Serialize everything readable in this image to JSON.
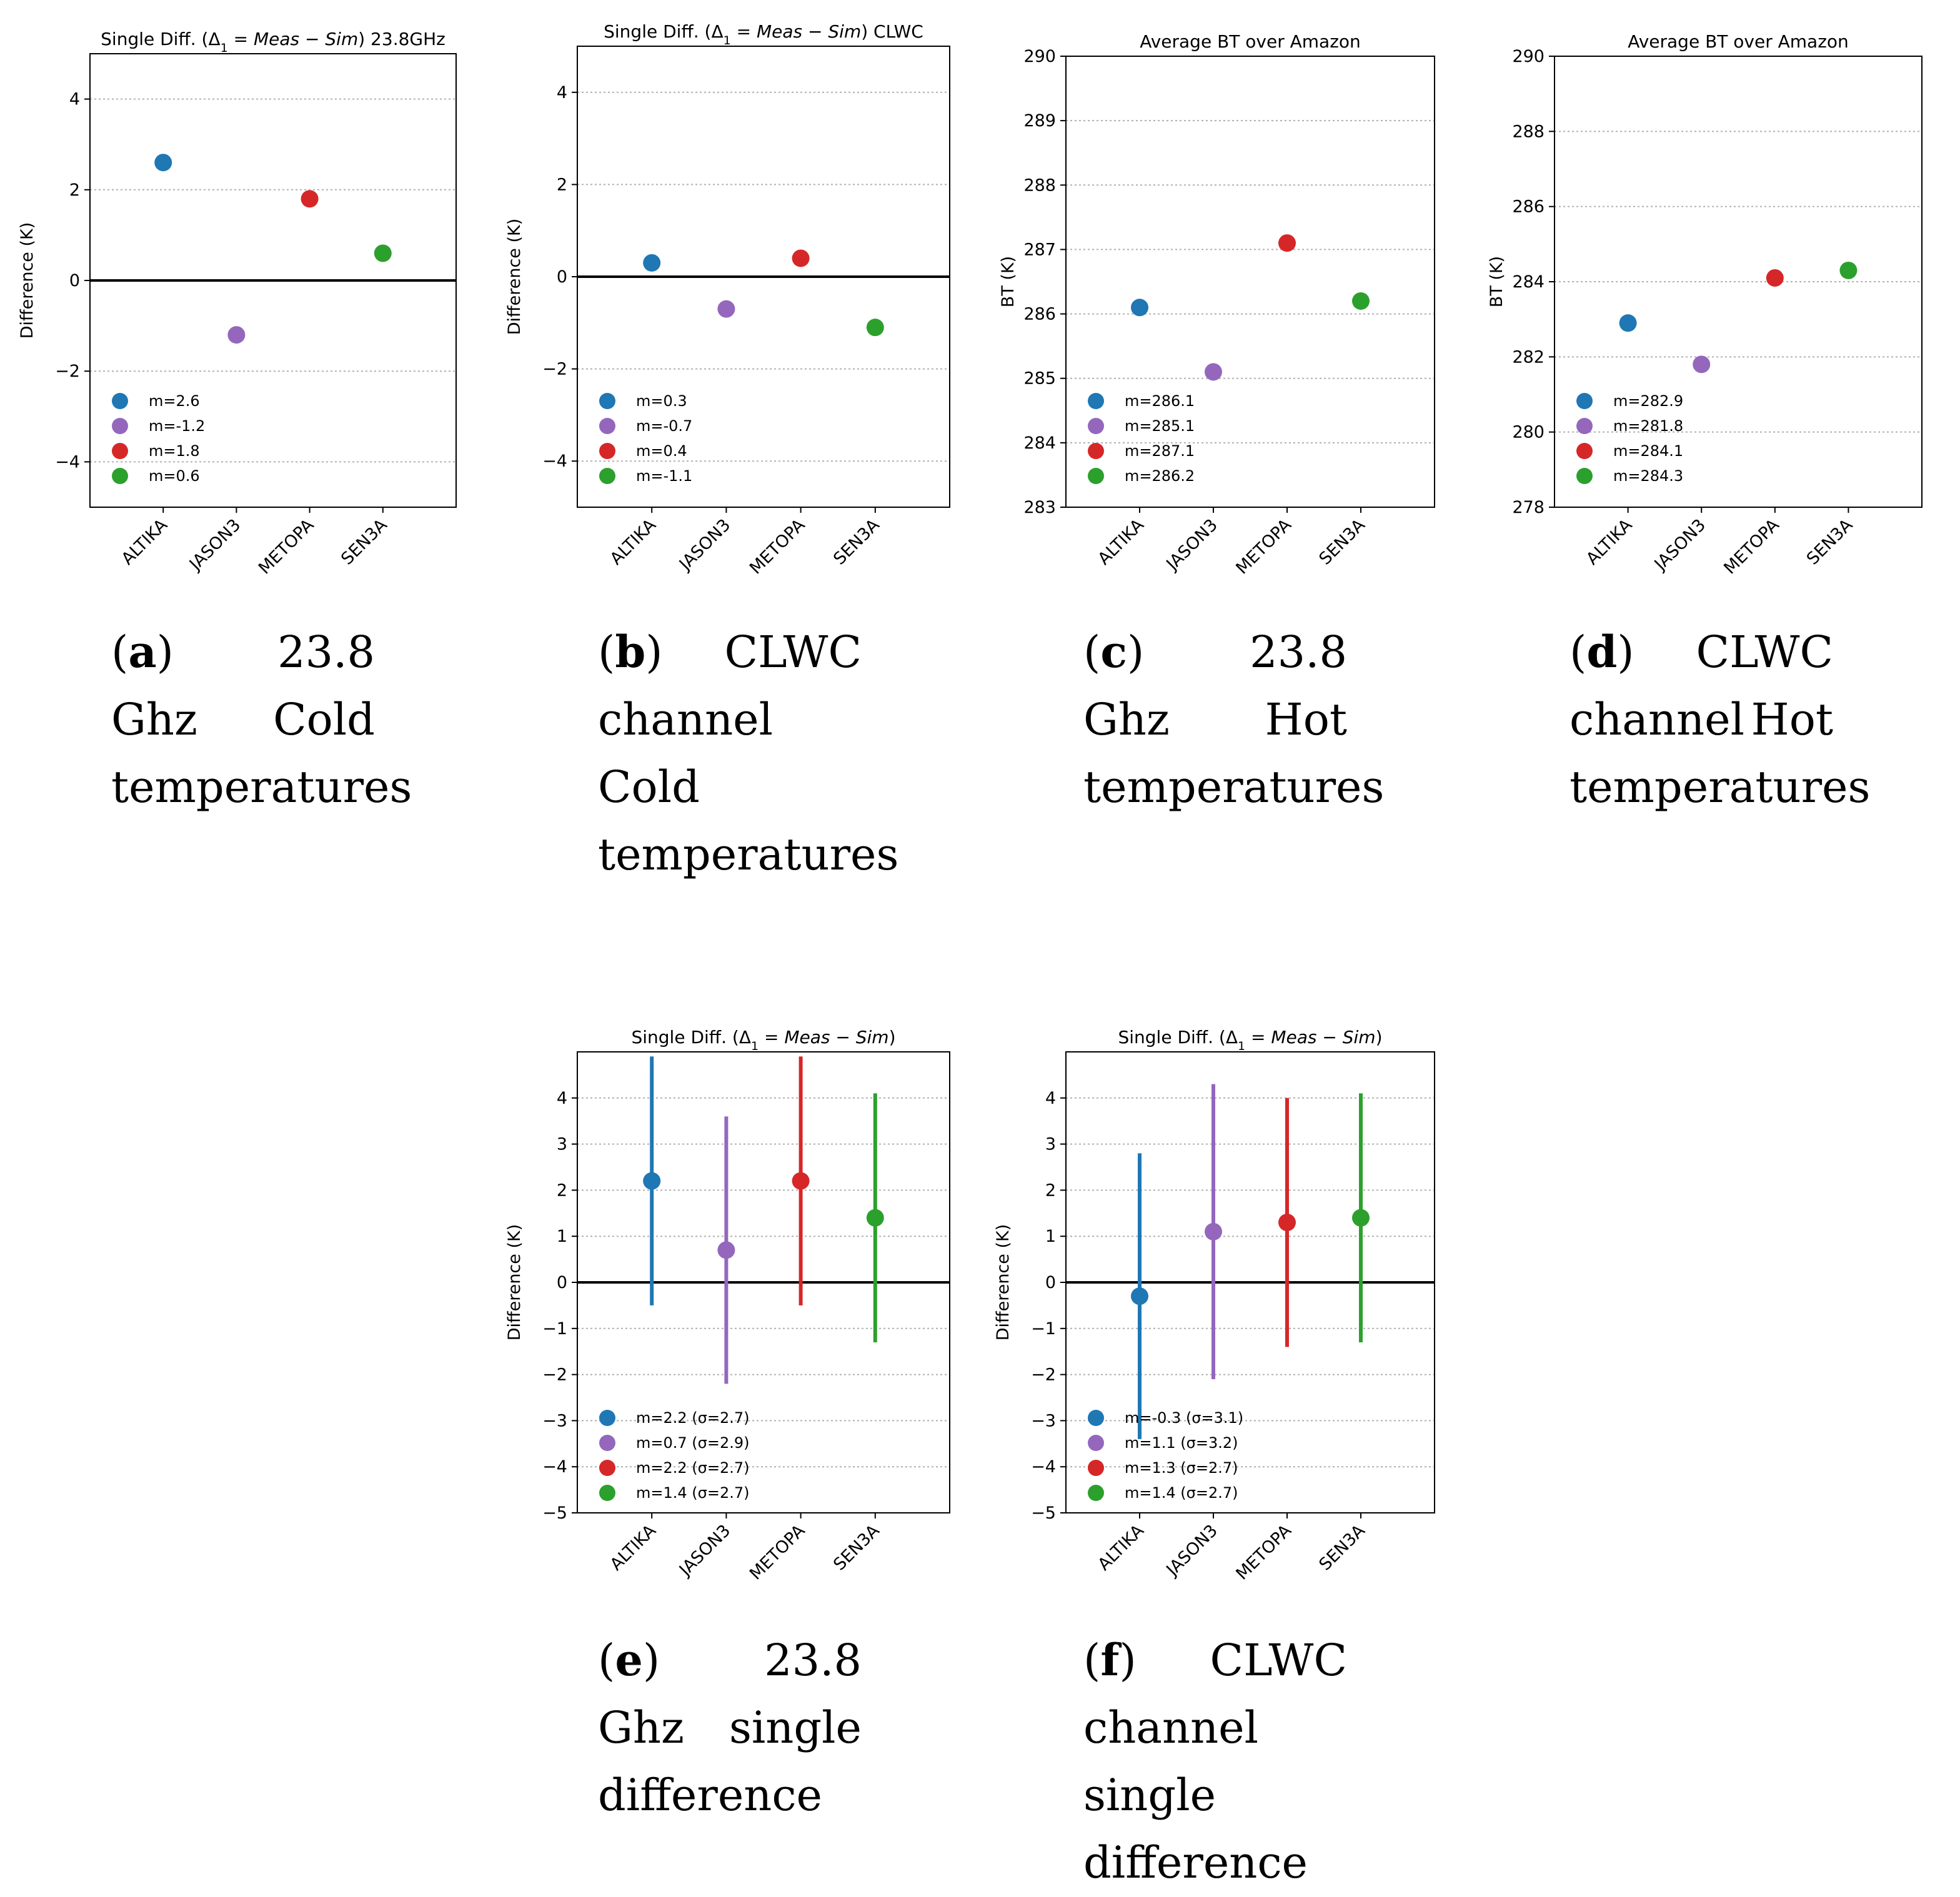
{
  "colors": {
    "ALTIKA": "#1f77b4",
    "JASON3": "#9467bd",
    "METOPA": "#d62728",
    "SEN3A": "#2ca02c"
  },
  "chart_data": [
    {
      "id": "a",
      "type": "scatter",
      "title_html": "Single Diff. (Δ<tspan baseline-shift='sub' font-size='19'>1</tspan> = <tspan font-style='italic'>Meas</tspan> − <tspan font-style='italic'>Sim</tspan>) 23.8GHz",
      "title": "Single Diff. (Δ1 = Meas − Sim) 23.8GHz",
      "ylabel": "Difference (K)",
      "ylim": [
        -5,
        5
      ],
      "yticks": [
        -4,
        -2,
        0,
        2,
        4
      ],
      "zero_line": true,
      "categories": [
        "ALTIKA",
        "JASON3",
        "METOPA",
        "SEN3A"
      ],
      "values": [
        2.6,
        -1.2,
        1.8,
        0.6
      ],
      "legend": [
        "m=2.6",
        "m=-1.2",
        "m=1.8",
        "m=0.6"
      ],
      "caption": {
        "label": "(a)",
        "lines": [
          "23.8",
          "Ghz Cold",
          "temperatures"
        ]
      }
    },
    {
      "id": "b",
      "type": "scatter",
      "title_html": "Single Diff. (Δ<tspan baseline-shift='sub' font-size='19'>1</tspan> = <tspan font-style='italic'>Meas</tspan> − <tspan font-style='italic'>Sim</tspan>) CLWC",
      "title": "Single Diff. (Δ1 = Meas − Sim) CLWC",
      "ylabel": "Difference (K)",
      "ylim": [
        -5,
        5
      ],
      "yticks": [
        -4,
        -2,
        0,
        2,
        4
      ],
      "zero_line": true,
      "categories": [
        "ALTIKA",
        "JASON3",
        "METOPA",
        "SEN3A"
      ],
      "values": [
        0.3,
        -0.7,
        0.4,
        -1.1
      ],
      "legend": [
        "m=0.3",
        "m=-0.7",
        "m=0.4",
        "m=-1.1"
      ],
      "caption": {
        "label": "(b)",
        "lines": [
          "CLWC",
          "channel",
          "Cold",
          "temperatures"
        ]
      }
    },
    {
      "id": "c",
      "type": "scatter",
      "title": "Average BT over Amazon",
      "ylabel": "BT (K)",
      "ylim": [
        283,
        290
      ],
      "yticks": [
        283,
        284,
        285,
        286,
        287,
        288,
        289,
        290
      ],
      "zero_line": false,
      "categories": [
        "ALTIKA",
        "JASON3",
        "METOPA",
        "SEN3A"
      ],
      "values": [
        286.1,
        285.1,
        287.1,
        286.2
      ],
      "legend": [
        "m=286.1",
        "m=285.1",
        "m=287.1",
        "m=286.2"
      ],
      "caption": {
        "label": "(c)",
        "lines": [
          "23.8",
          "Ghz Hot",
          "temperatures"
        ]
      }
    },
    {
      "id": "d",
      "type": "scatter",
      "title": "Average BT over Amazon",
      "ylabel": "BT (K)",
      "ylim": [
        278,
        290
      ],
      "yticks": [
        278,
        280,
        282,
        284,
        286,
        288,
        290
      ],
      "zero_line": false,
      "categories": [
        "ALTIKA",
        "JASON3",
        "METOPA",
        "SEN3A"
      ],
      "values": [
        282.9,
        281.8,
        284.1,
        284.3
      ],
      "legend": [
        "m=282.9",
        "m=281.8",
        "m=284.1",
        "m=284.3"
      ],
      "caption": {
        "label": "(d)",
        "lines": [
          "CLWC",
          "channel Hot",
          "temperatures"
        ]
      }
    },
    {
      "id": "e",
      "type": "errorbar",
      "title_html": "Single Diff. (Δ<tspan baseline-shift='sub' font-size='19'>1</tspan> = <tspan font-style='italic'>Meas</tspan> − <tspan font-style='italic'>Sim</tspan>)",
      "title": "Single Diff. (Δ1 = Meas − Sim)",
      "ylabel": "Difference (K)",
      "ylim": [
        -5,
        5
      ],
      "yticks": [
        -5,
        -4,
        -3,
        -2,
        -1,
        0,
        1,
        2,
        3,
        4
      ],
      "zero_line": true,
      "categories": [
        "ALTIKA",
        "JASON3",
        "METOPA",
        "SEN3A"
      ],
      "values": [
        2.2,
        0.7,
        2.2,
        1.4
      ],
      "sigma": [
        2.7,
        2.9,
        2.7,
        2.7
      ],
      "legend": [
        "m=2.2 (σ=2.7)",
        "m=0.7 (σ=2.9)",
        "m=2.2 (σ=2.7)",
        "m=1.4 (σ=2.7)"
      ],
      "caption": {
        "label": "(e)",
        "lines": [
          "23.8",
          "Ghz single",
          "difference"
        ]
      }
    },
    {
      "id": "f",
      "type": "errorbar",
      "title_html": "Single Diff. (Δ<tspan baseline-shift='sub' font-size='19'>1</tspan> = <tspan font-style='italic'>Meas</tspan> − <tspan font-style='italic'>Sim</tspan>)",
      "title": "Single Diff. (Δ1 = Meas − Sim)",
      "ylabel": "Difference (K)",
      "ylim": [
        -5,
        5
      ],
      "yticks": [
        -5,
        -4,
        -3,
        -2,
        -1,
        0,
        1,
        2,
        3,
        4
      ],
      "zero_line": true,
      "categories": [
        "ALTIKA",
        "JASON3",
        "METOPA",
        "SEN3A"
      ],
      "values": [
        -0.3,
        1.1,
        1.3,
        1.4
      ],
      "sigma": [
        3.1,
        3.2,
        2.7,
        2.7
      ],
      "legend": [
        "m=-0.3 (σ=3.1)",
        "m=1.1 (σ=3.2)",
        "m=1.3 (σ=2.7)",
        "m=1.4 (σ=2.7)"
      ],
      "caption": {
        "label": "(f)",
        "lines": [
          "CLWC",
          "channel",
          "single",
          "difference"
        ]
      }
    }
  ]
}
